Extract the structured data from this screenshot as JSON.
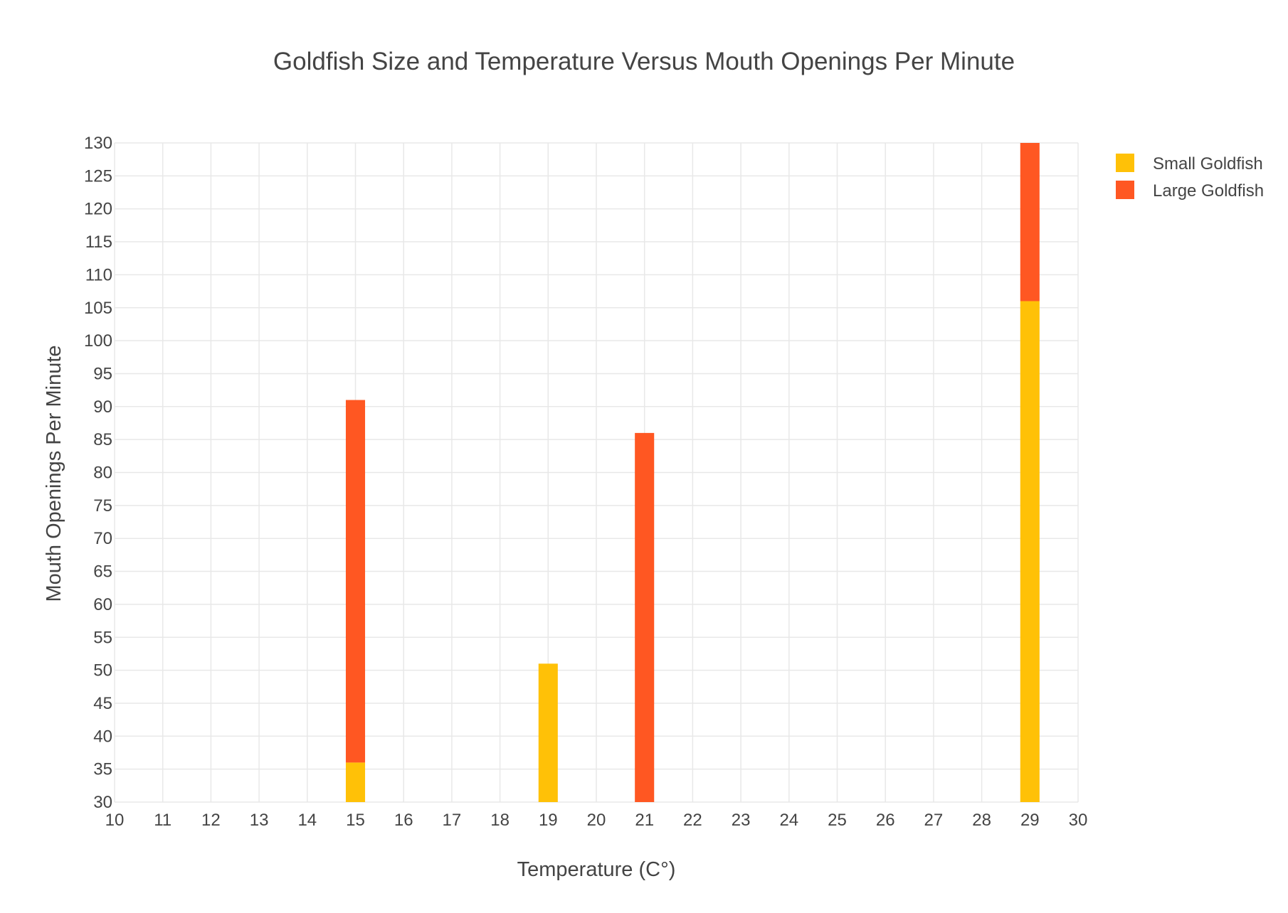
{
  "chart_data": {
    "type": "bar",
    "barmode": "stack",
    "title": "Goldfish Size and Temperature Versus Mouth Openings Per Minute",
    "xlabel": "Temperature (C°)",
    "ylabel": "Mouth Openings Per Minute",
    "xlim": [
      10,
      30
    ],
    "ylim": [
      30,
      130
    ],
    "x_ticks": [
      "10",
      "11",
      "12",
      "13",
      "14",
      "15",
      "16",
      "17",
      "18",
      "19",
      "20",
      "21",
      "22",
      "23",
      "24",
      "25",
      "26",
      "27",
      "28",
      "29",
      "30"
    ],
    "y_ticks": [
      "30",
      "35",
      "40",
      "45",
      "50",
      "55",
      "60",
      "65",
      "70",
      "75",
      "80",
      "85",
      "90",
      "95",
      "100",
      "105",
      "110",
      "115",
      "120",
      "125",
      "130"
    ],
    "grid": true,
    "legend_position": "top-right",
    "series": [
      {
        "name": "Small Goldfish",
        "color": "#ffc107",
        "points": [
          {
            "x": 15,
            "y": 36
          },
          {
            "x": 19,
            "y": 51
          },
          {
            "x": 29,
            "y": 106
          }
        ]
      },
      {
        "name": "Large Goldfish",
        "color": "#ff5722",
        "points": [
          {
            "x": 15,
            "y": 91
          },
          {
            "x": 21,
            "y": 86
          },
          {
            "x": 29,
            "y": 130
          }
        ]
      }
    ]
  }
}
